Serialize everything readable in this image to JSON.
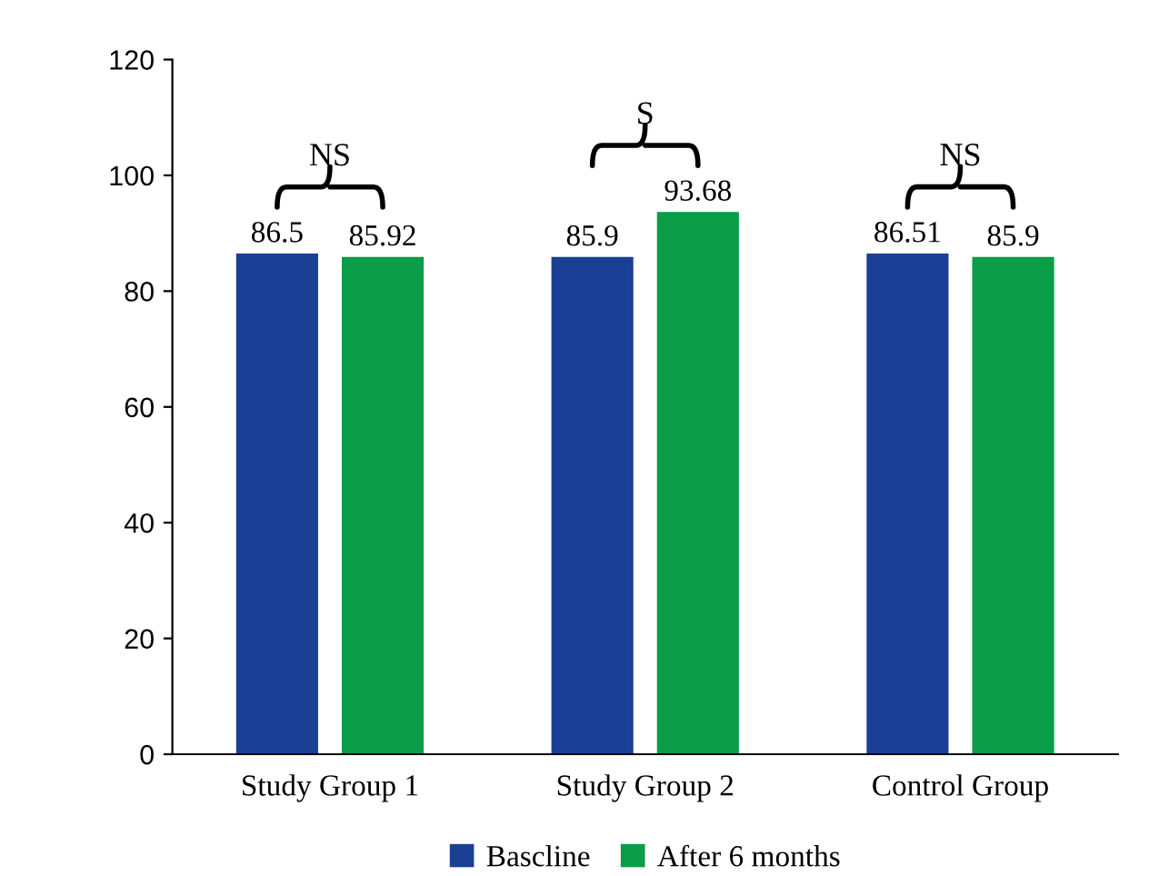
{
  "chart_data": {
    "type": "bar",
    "categories": [
      "Study Group 1",
      "Study Group 2",
      "Control Group"
    ],
    "series": [
      {
        "name": "Bascline",
        "color": "#1a3f95",
        "values": [
          86.5,
          85.9,
          86.51
        ]
      },
      {
        "name": "After 6 months",
        "color": "#0b9c48",
        "values": [
          85.92,
          93.68,
          85.9
        ]
      }
    ],
    "ylim": [
      0,
      120
    ],
    "yticks": [
      0,
      20,
      40,
      60,
      80,
      100,
      120
    ],
    "data_labels": true,
    "grid": false,
    "legend": "bottom",
    "annotations": [
      "NS",
      "S",
      "NS"
    ]
  }
}
